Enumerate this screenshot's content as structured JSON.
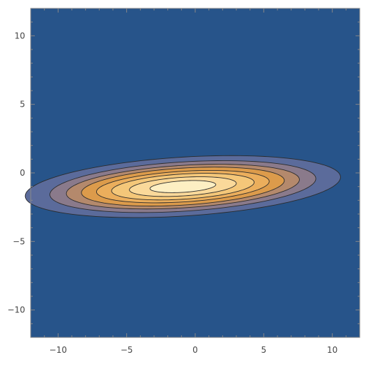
{
  "chart_data": {
    "type": "contour",
    "title": "",
    "xlabel": "",
    "ylabel": "",
    "xlim": [
      -12,
      12
    ],
    "ylim": [
      -12,
      12
    ],
    "x_ticks": [
      {
        "value": -10,
        "label": "−10"
      },
      {
        "value": -5,
        "label": "−5"
      },
      {
        "value": 0,
        "label": "0"
      },
      {
        "value": 5,
        "label": "5"
      },
      {
        "value": 10,
        "label": "10"
      }
    ],
    "y_ticks": [
      {
        "value": 10,
        "label": "10"
      },
      {
        "value": 5,
        "label": "5"
      },
      {
        "value": 0,
        "label": "0"
      },
      {
        "value": -5,
        "label": "−5"
      },
      {
        "value": -10,
        "label": "−10"
      }
    ],
    "minor_step": 1,
    "background_color": "#27548a",
    "center": {
      "x": -0.9,
      "y": -1.0
    },
    "tilt_slope": 0.06,
    "contours": [
      {
        "level": 1,
        "a": 11.5,
        "b": 2.15,
        "color": "#5b6b9b"
      },
      {
        "level": 2,
        "a": 9.7,
        "b": 1.8,
        "color": "#8a7a8b"
      },
      {
        "level": 3,
        "a": 8.5,
        "b": 1.55,
        "color": "#b4896c"
      },
      {
        "level": 4,
        "a": 7.4,
        "b": 1.35,
        "color": "#dc9b4b"
      },
      {
        "level": 5,
        "a": 6.3,
        "b": 1.12,
        "color": "#ebae5c"
      },
      {
        "level": 6,
        "a": 5.2,
        "b": 0.92,
        "color": "#f4c779"
      },
      {
        "level": 7,
        "a": 3.9,
        "b": 0.68,
        "color": "#fad99a"
      },
      {
        "level": 8,
        "a": 2.4,
        "b": 0.42,
        "color": "#fdefc3"
      }
    ]
  }
}
